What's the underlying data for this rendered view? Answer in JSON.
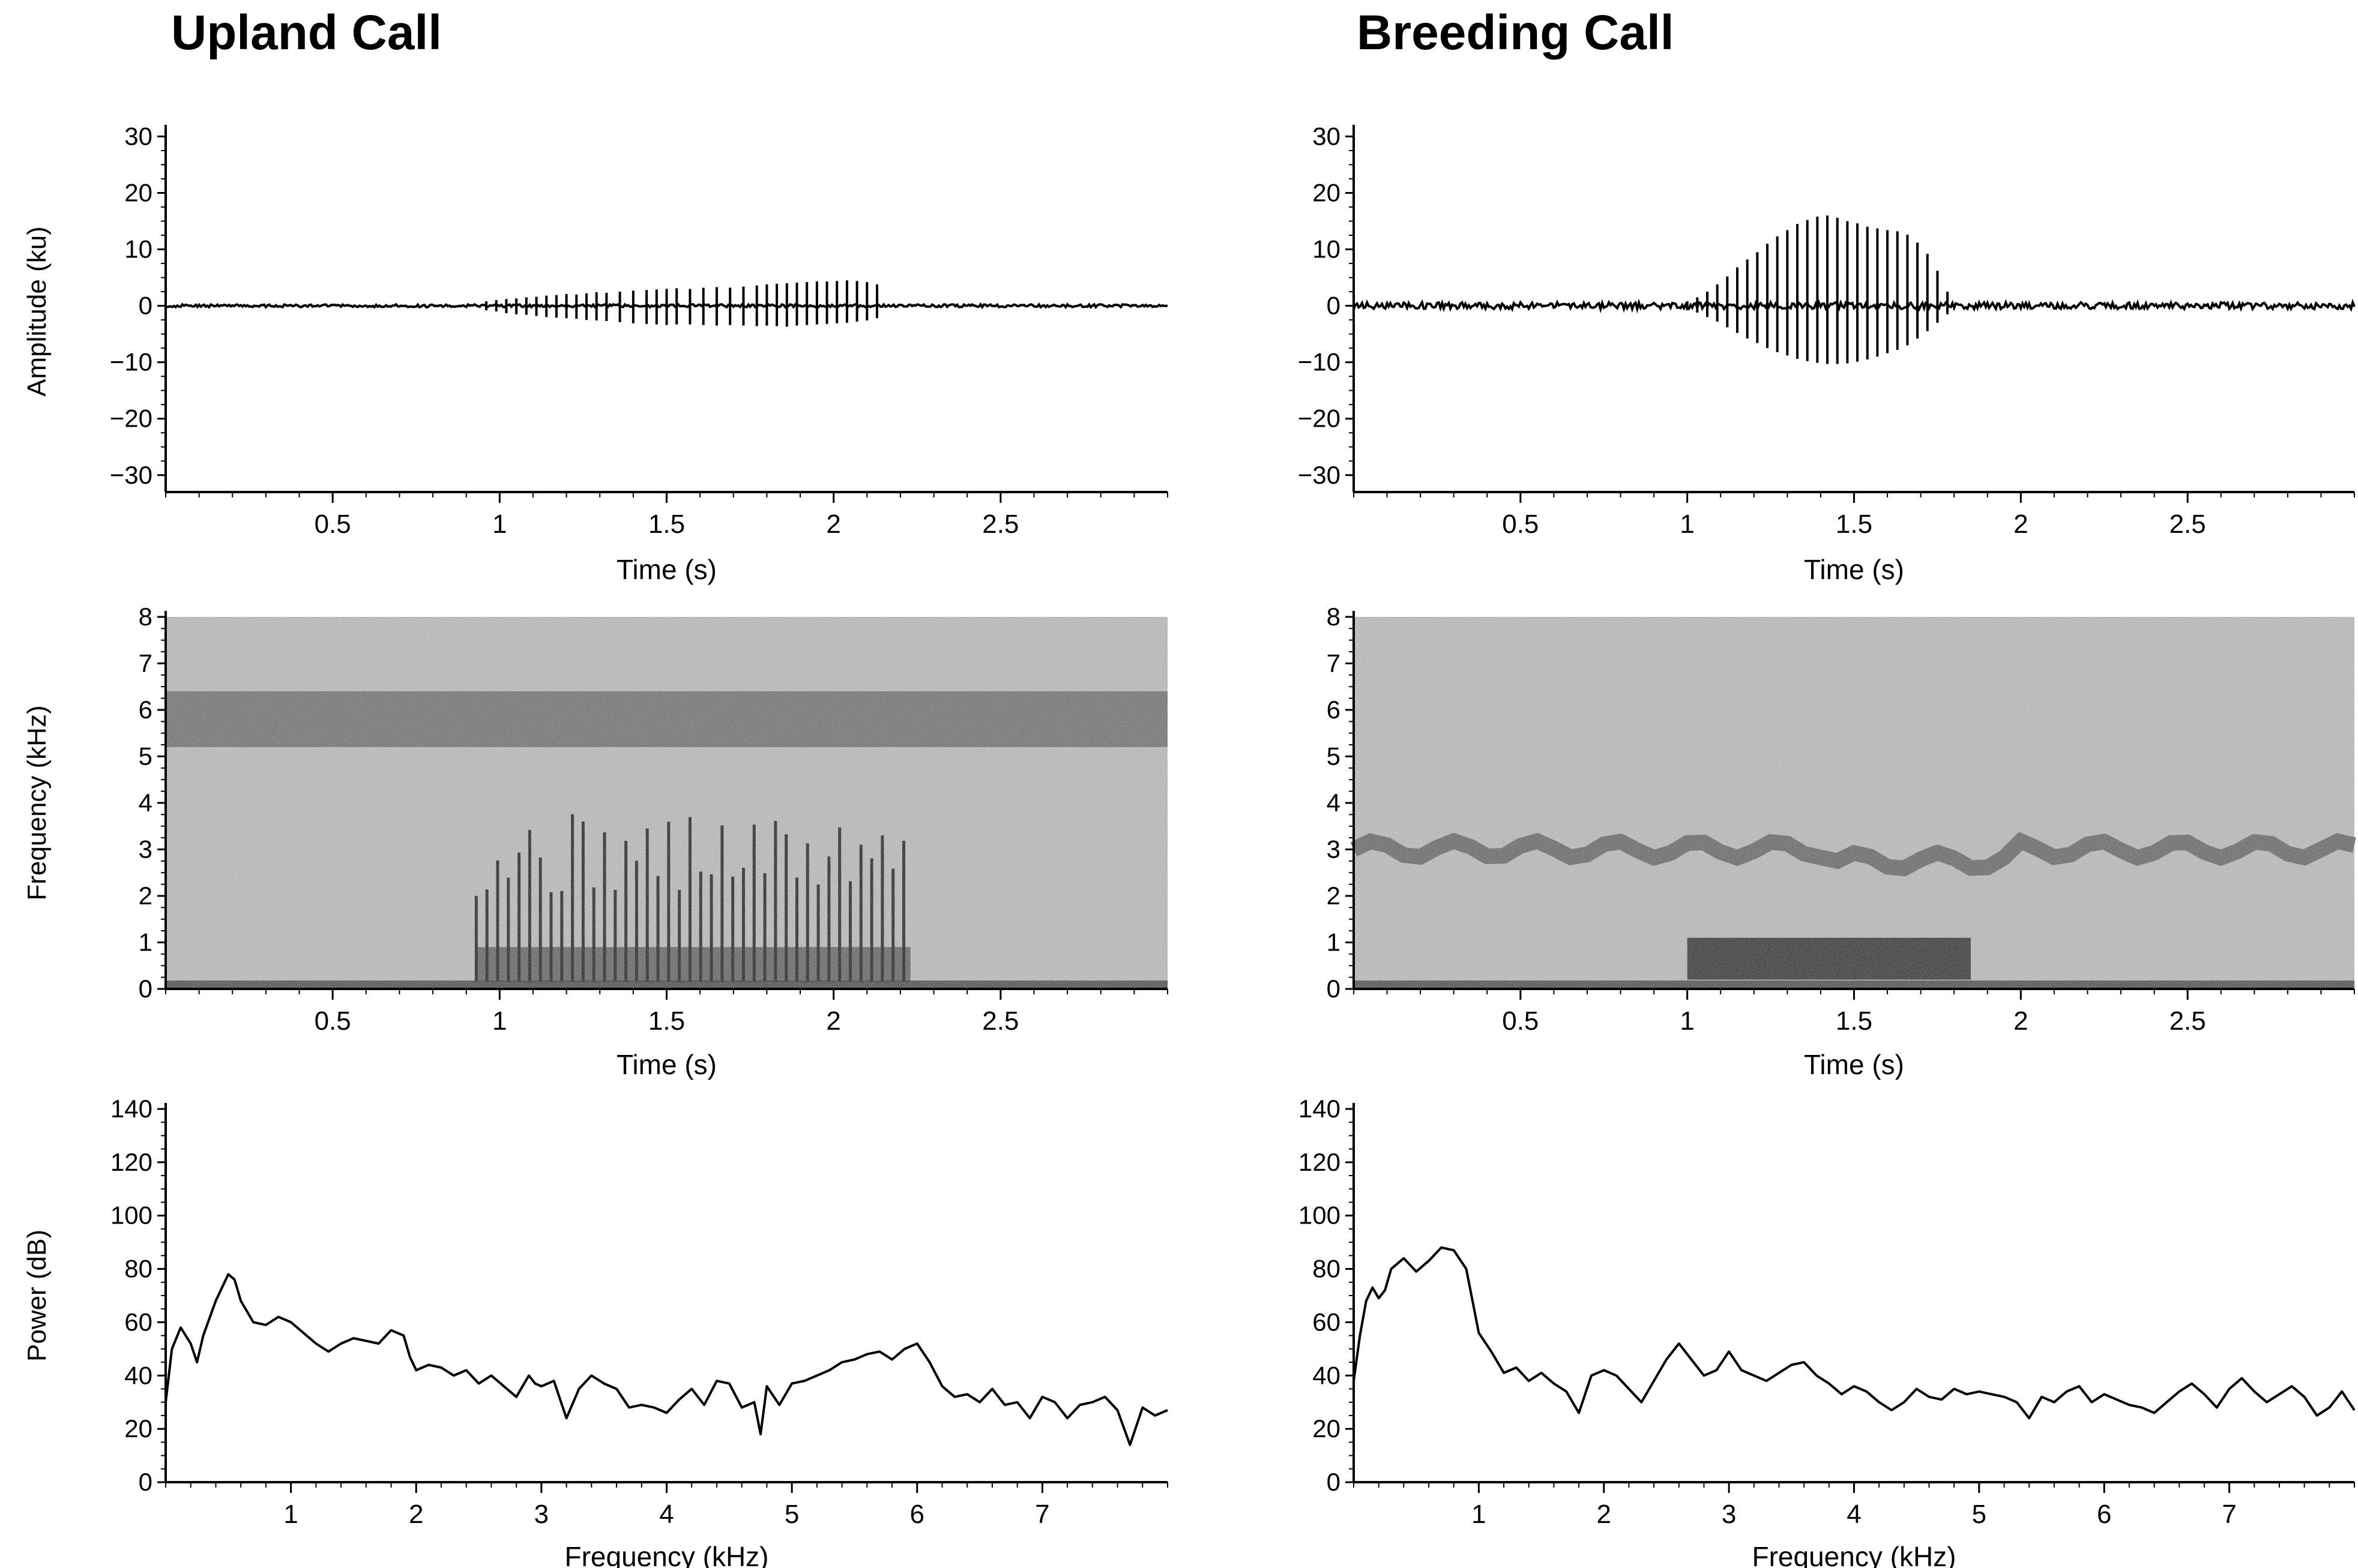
{
  "columns": [
    {
      "title": "Upland Call"
    },
    {
      "title": "Breeding Call"
    }
  ],
  "chart_data": [
    {
      "panel": "upland-waveform",
      "type": "line",
      "title": "",
      "xlabel": "Time (s)",
      "ylabel": "Amplitude (ku)",
      "xlim": [
        0,
        3.0
      ],
      "ylim": [
        -33,
        31
      ],
      "xticks": [
        0.5,
        1,
        1.5,
        2,
        2.5
      ],
      "xtick_labels": [
        "0.5",
        "1",
        "1.5",
        "2",
        "2.5"
      ],
      "yticks": [
        30,
        20,
        10,
        0,
        -10,
        -20,
        -30
      ],
      "ytick_labels": [
        "30",
        "20",
        "10",
        "0",
        "−10",
        "−20",
        "−30"
      ],
      "pulses": {
        "t": [
          0.96,
          0.99,
          1.02,
          1.05,
          1.08,
          1.11,
          1.14,
          1.17,
          1.2,
          1.23,
          1.26,
          1.29,
          1.32,
          1.36,
          1.4,
          1.44,
          1.47,
          1.5,
          1.53,
          1.57,
          1.61,
          1.65,
          1.69,
          1.73,
          1.77,
          1.8,
          1.83,
          1.86,
          1.89,
          1.92,
          1.95,
          1.98,
          2.01,
          2.04,
          2.07,
          2.1,
          2.13
        ],
        "max": [
          0.8,
          1.0,
          1.2,
          1.3,
          1.5,
          1.6,
          1.8,
          1.9,
          2.1,
          2.0,
          2.2,
          2.4,
          2.3,
          2.5,
          2.7,
          2.8,
          2.9,
          3.0,
          3.1,
          3.0,
          3.2,
          3.3,
          3.2,
          3.4,
          3.6,
          3.8,
          3.9,
          4.0,
          4.1,
          4.2,
          4.3,
          4.3,
          4.4,
          4.5,
          4.4,
          4.2,
          3.8
        ],
        "min": [
          -0.8,
          -1.0,
          -1.3,
          -1.5,
          -1.6,
          -1.8,
          -2.0,
          -2.1,
          -2.2,
          -2.3,
          -2.5,
          -2.6,
          -2.7,
          -2.9,
          -3.1,
          -3.2,
          -3.3,
          -3.4,
          -3.3,
          -3.3,
          -3.4,
          -3.5,
          -3.4,
          -3.5,
          -3.6,
          -3.5,
          -3.6,
          -3.7,
          -3.5,
          -3.4,
          -3.3,
          -3.2,
          -3.1,
          -3.0,
          -2.8,
          -2.6,
          -2.2
        ]
      }
    },
    {
      "panel": "upland-spectrogram",
      "type": "heatmap",
      "title": "",
      "xlabel": "Time (s)",
      "ylabel": "Frequency (kHz)",
      "xlim": [
        0,
        3.0
      ],
      "ylim": [
        0,
        8
      ],
      "xticks": [
        0.5,
        1,
        1.5,
        2,
        2.5
      ],
      "xtick_labels": [
        "0.5",
        "1",
        "1.5",
        "2",
        "2.5"
      ],
      "yticks": [
        0,
        1,
        2,
        3,
        4,
        5,
        6,
        7,
        8
      ],
      "ytick_labels": [
        "0",
        "1",
        "2",
        "3",
        "4",
        "5",
        "6",
        "7",
        "8"
      ],
      "noise_band_khz": [
        5.2,
        6.4
      ],
      "call": {
        "start_s": 0.93,
        "end_s": 2.23,
        "base_khz": [
          0.15,
          0.9
        ],
        "harmonic_top_khz": [
          2.0,
          3.8
        ]
      }
    },
    {
      "panel": "upland-power-spectrum",
      "type": "line",
      "title": "",
      "xlabel": "Frequency (kHz)",
      "ylabel": "Power (dB)",
      "xlim": [
        0,
        8
      ],
      "ylim": [
        0,
        140
      ],
      "xticks": [
        1,
        2,
        3,
        4,
        5,
        6,
        7
      ],
      "xtick_labels": [
        "1",
        "2",
        "3",
        "4",
        "5",
        "6",
        "7"
      ],
      "yticks": [
        0,
        20,
        40,
        60,
        80,
        100,
        120,
        140
      ],
      "ytick_labels": [
        "0",
        "20",
        "40",
        "60",
        "80",
        "100",
        "120",
        "140"
      ],
      "x": [
        0.0,
        0.05,
        0.12,
        0.2,
        0.25,
        0.3,
        0.4,
        0.5,
        0.55,
        0.6,
        0.7,
        0.8,
        0.9,
        1.0,
        1.1,
        1.2,
        1.3,
        1.4,
        1.5,
        1.6,
        1.7,
        1.8,
        1.9,
        1.95,
        2.0,
        2.1,
        2.2,
        2.3,
        2.4,
        2.5,
        2.6,
        2.7,
        2.8,
        2.9,
        2.95,
        3.0,
        3.1,
        3.2,
        3.3,
        3.4,
        3.5,
        3.6,
        3.7,
        3.8,
        3.9,
        4.0,
        4.1,
        4.2,
        4.3,
        4.4,
        4.5,
        4.6,
        4.7,
        4.75,
        4.8,
        4.9,
        5.0,
        5.1,
        5.2,
        5.3,
        5.4,
        5.5,
        5.6,
        5.7,
        5.8,
        5.9,
        6.0,
        6.1,
        6.2,
        6.3,
        6.4,
        6.5,
        6.6,
        6.7,
        6.8,
        6.9,
        7.0,
        7.1,
        7.2,
        7.3,
        7.4,
        7.5,
        7.6,
        7.7,
        7.8,
        7.9,
        8.0
      ],
      "y": [
        30,
        50,
        58,
        52,
        45,
        55,
        68,
        78,
        76,
        68,
        60,
        59,
        62,
        60,
        56,
        52,
        49,
        52,
        54,
        53,
        52,
        57,
        55,
        47,
        42,
        44,
        43,
        40,
        42,
        37,
        40,
        36,
        32,
        40,
        37,
        36,
        38,
        24,
        35,
        40,
        37,
        35,
        28,
        29,
        28,
        26,
        31,
        35,
        29,
        38,
        37,
        28,
        30,
        18,
        36,
        29,
        37,
        38,
        40,
        42,
        45,
        46,
        48,
        49,
        46,
        50,
        52,
        45,
        36,
        32,
        33,
        30,
        35,
        29,
        30,
        24,
        32,
        30,
        24,
        29,
        30,
        32,
        27,
        14,
        28,
        25,
        27
      ]
    },
    {
      "panel": "breeding-waveform",
      "type": "line",
      "title": "",
      "xlabel": "Time (s)",
      "ylabel": "",
      "xlim": [
        0,
        3.0
      ],
      "ylim": [
        -33,
        31
      ],
      "xticks": [
        0.5,
        1,
        1.5,
        2,
        2.5
      ],
      "xtick_labels": [
        "0.5",
        "1",
        "1.5",
        "2",
        "2.5"
      ],
      "yticks": [
        30,
        20,
        10,
        0,
        -10,
        -20,
        -30
      ],
      "ytick_labels": [
        "30",
        "20",
        "10",
        "0",
        "−10",
        "−20",
        "−30"
      ],
      "pulses": {
        "t": [
          1.0,
          1.03,
          1.06,
          1.09,
          1.12,
          1.15,
          1.18,
          1.21,
          1.24,
          1.27,
          1.3,
          1.33,
          1.36,
          1.39,
          1.42,
          1.45,
          1.48,
          1.51,
          1.54,
          1.57,
          1.6,
          1.63,
          1.66,
          1.69,
          1.72,
          1.75,
          1.78
        ],
        "max": [
          0.8,
          1.5,
          2.5,
          3.8,
          5.2,
          6.8,
          8.2,
          9.5,
          11.0,
          12.3,
          13.4,
          14.5,
          15.2,
          15.8,
          16.0,
          15.6,
          15.0,
          14.6,
          14.0,
          13.7,
          13.4,
          13.2,
          12.6,
          11.2,
          9.2,
          6.2,
          2.5
        ],
        "min": [
          -0.8,
          -1.2,
          -2.0,
          -2.8,
          -3.8,
          -4.8,
          -5.8,
          -6.6,
          -7.5,
          -8.2,
          -8.8,
          -9.4,
          -9.8,
          -10.1,
          -10.3,
          -10.3,
          -10.2,
          -9.9,
          -9.5,
          -9.0,
          -8.4,
          -7.8,
          -7.0,
          -5.8,
          -4.5,
          -3.0,
          -1.5
        ]
      }
    },
    {
      "panel": "breeding-spectrogram",
      "type": "heatmap",
      "title": "",
      "xlabel": "Time (s)",
      "ylabel": "",
      "xlim": [
        0,
        3.0
      ],
      "ylim": [
        0,
        8
      ],
      "xticks": [
        0.5,
        1,
        1.5,
        2,
        2.5
      ],
      "xtick_labels": [
        "0.5",
        "1",
        "1.5",
        "2",
        "2.5"
      ],
      "yticks": [
        0,
        1,
        2,
        3,
        4,
        5,
        6,
        7,
        8
      ],
      "ytick_labels": [
        "0",
        "1",
        "2",
        "3",
        "4",
        "5",
        "6",
        "7",
        "8"
      ],
      "noise_band_khz": [
        2.6,
        3.4
      ],
      "call": {
        "start_s": 1.0,
        "end_s": 1.85,
        "base_khz": [
          0.2,
          1.1
        ]
      }
    },
    {
      "panel": "breeding-power-spectrum",
      "type": "line",
      "title": "",
      "xlabel": "Frequency (kHz)",
      "ylabel": "",
      "xlim": [
        0,
        8
      ],
      "ylim": [
        0,
        140
      ],
      "xticks": [
        1,
        2,
        3,
        4,
        5,
        6,
        7
      ],
      "xtick_labels": [
        "1",
        "2",
        "3",
        "4",
        "5",
        "6",
        "7"
      ],
      "yticks": [
        0,
        20,
        40,
        60,
        80,
        100,
        120,
        140
      ],
      "ytick_labels": [
        "0",
        "20",
        "40",
        "60",
        "80",
        "100",
        "120",
        "140"
      ],
      "x": [
        0.0,
        0.05,
        0.1,
        0.15,
        0.2,
        0.25,
        0.3,
        0.4,
        0.5,
        0.6,
        0.7,
        0.8,
        0.9,
        1.0,
        1.1,
        1.2,
        1.3,
        1.4,
        1.5,
        1.6,
        1.7,
        1.8,
        1.9,
        2.0,
        2.1,
        2.2,
        2.3,
        2.4,
        2.5,
        2.6,
        2.7,
        2.8,
        2.9,
        3.0,
        3.1,
        3.2,
        3.3,
        3.4,
        3.5,
        3.6,
        3.7,
        3.8,
        3.9,
        4.0,
        4.1,
        4.2,
        4.3,
        4.4,
        4.5,
        4.6,
        4.7,
        4.8,
        4.9,
        5.0,
        5.1,
        5.2,
        5.3,
        5.4,
        5.5,
        5.6,
        5.7,
        5.8,
        5.9,
        6.0,
        6.1,
        6.2,
        6.3,
        6.4,
        6.5,
        6.6,
        6.7,
        6.8,
        6.9,
        7.0,
        7.1,
        7.2,
        7.3,
        7.4,
        7.5,
        7.6,
        7.7,
        7.8,
        7.9,
        8.0
      ],
      "y": [
        38,
        55,
        68,
        73,
        69,
        72,
        80,
        84,
        79,
        83,
        88,
        87,
        80,
        56,
        49,
        41,
        43,
        38,
        41,
        37,
        34,
        26,
        40,
        42,
        40,
        35,
        30,
        38,
        46,
        52,
        46,
        40,
        42,
        49,
        42,
        40,
        38,
        41,
        44,
        45,
        40,
        37,
        33,
        36,
        34,
        30,
        27,
        30,
        35,
        32,
        31,
        35,
        33,
        34,
        33,
        32,
        30,
        24,
        32,
        30,
        34,
        36,
        30,
        33,
        31,
        29,
        28,
        26,
        30,
        34,
        37,
        33,
        28,
        35,
        39,
        34,
        30,
        33,
        36,
        32,
        25,
        28,
        34,
        27
      ]
    }
  ]
}
